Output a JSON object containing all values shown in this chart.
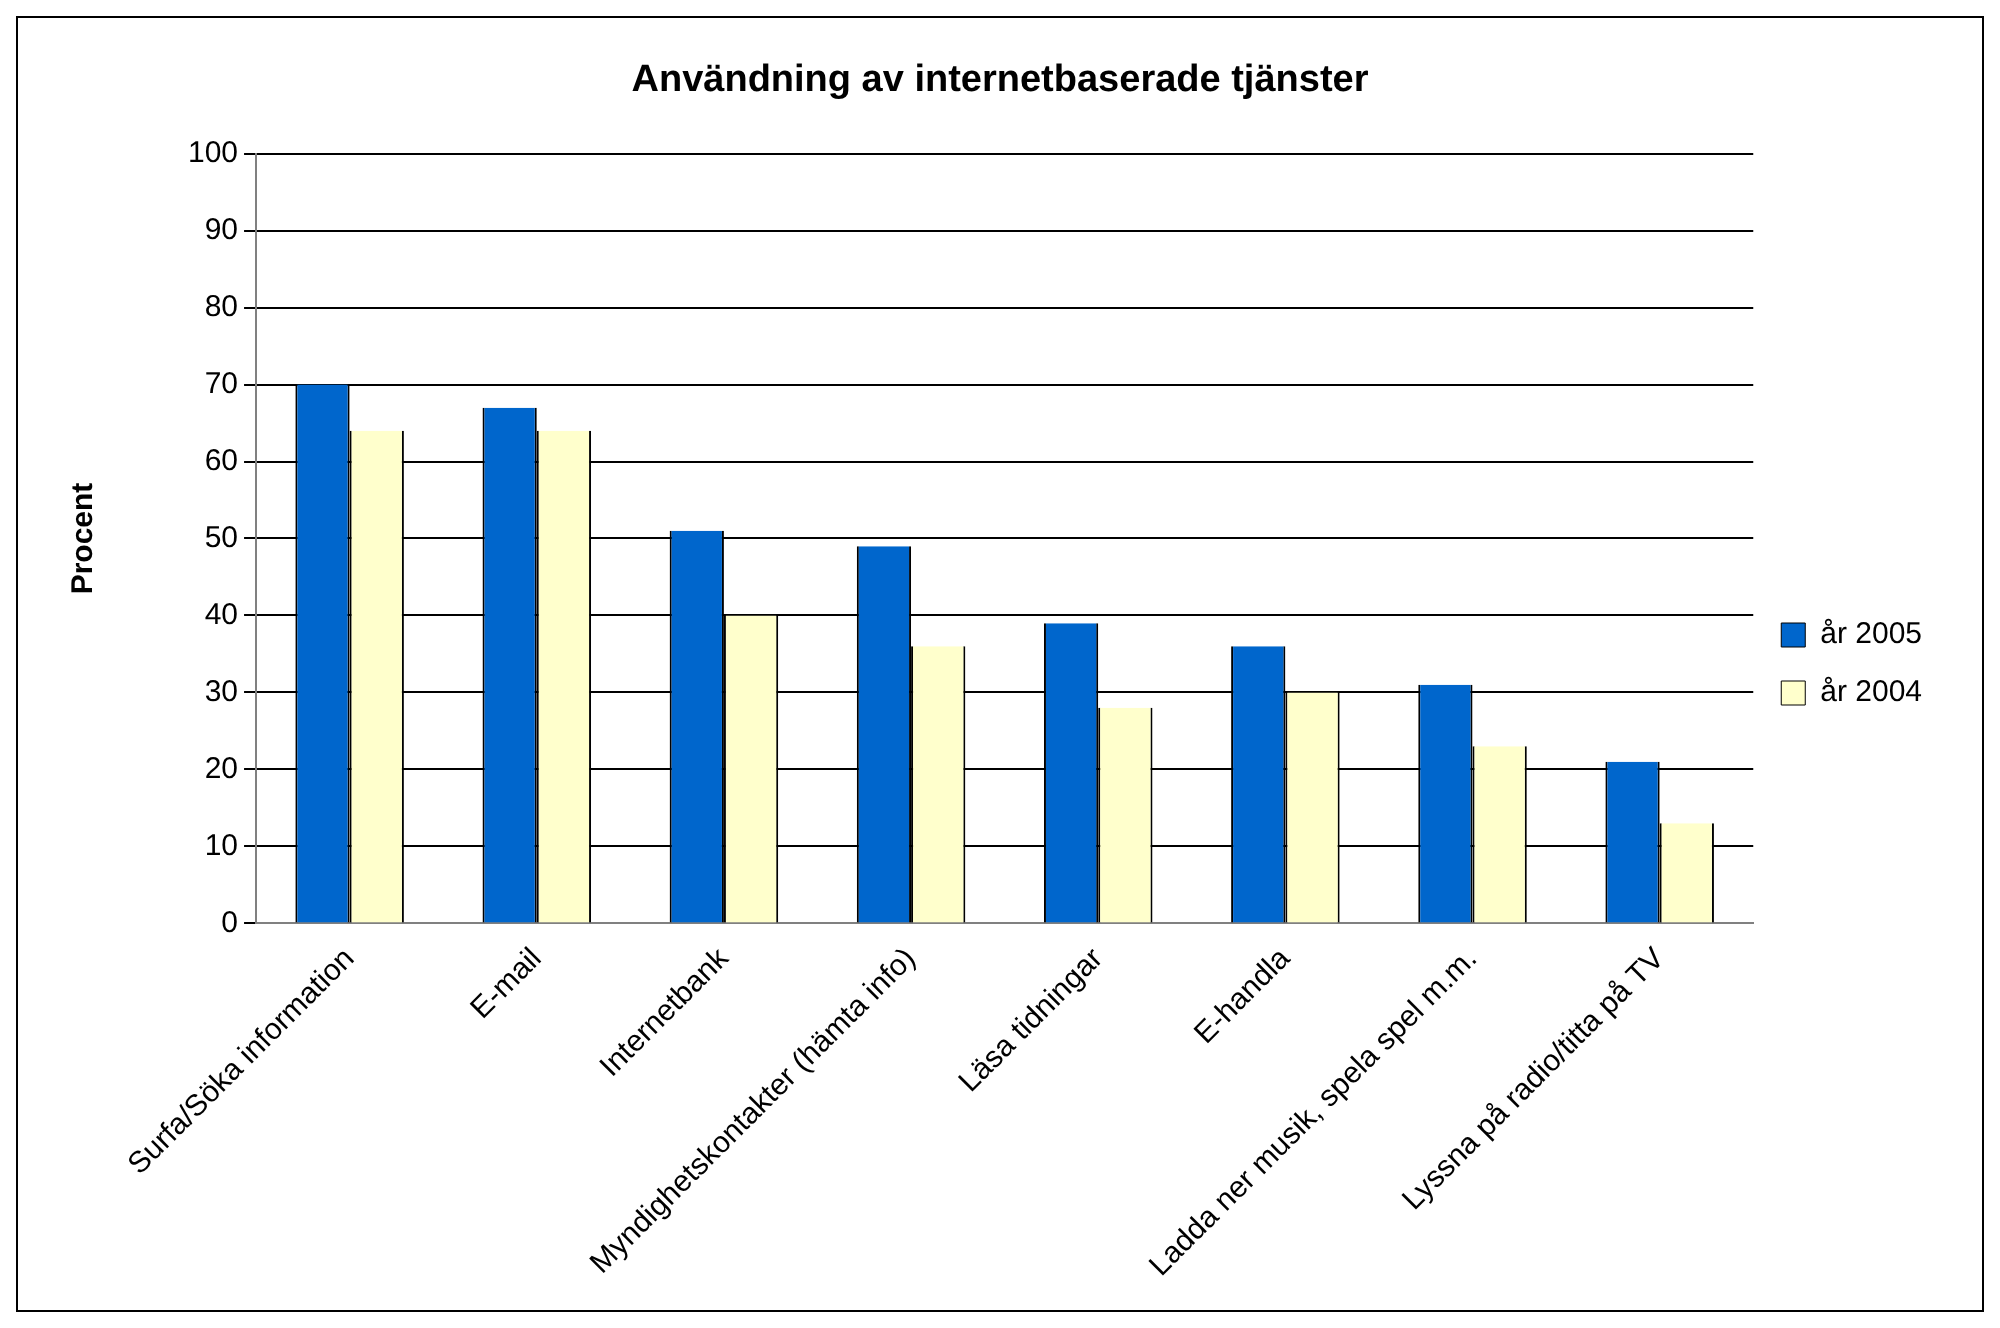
{
  "chart_data": {
    "type": "bar",
    "title": "Användning av internetbaserade tjänster",
    "ylabel": "Procent",
    "categories": [
      "Surfa/Söka information",
      "E-mail",
      "Internetbank",
      "Myndighetskontakter (hämta info)",
      "Läsa tidningar",
      "E-handla",
      "Ladda ner musik, spela spel m.m.",
      "Lyssna på radio/titta på TV"
    ],
    "series": [
      {
        "name": "år 2005",
        "color": "#0066cc",
        "values": [
          70,
          67,
          51,
          49,
          39,
          36,
          31,
          21
        ]
      },
      {
        "name": "år 2004",
        "color": "#ffffcc",
        "values": [
          64,
          64,
          40,
          36,
          28,
          30,
          23,
          13
        ]
      }
    ],
    "ylim": [
      0,
      100
    ],
    "yticks": [
      0,
      10,
      20,
      30,
      40,
      50,
      60,
      70,
      80,
      90,
      100
    ],
    "grid": "y",
    "legend": "right"
  }
}
